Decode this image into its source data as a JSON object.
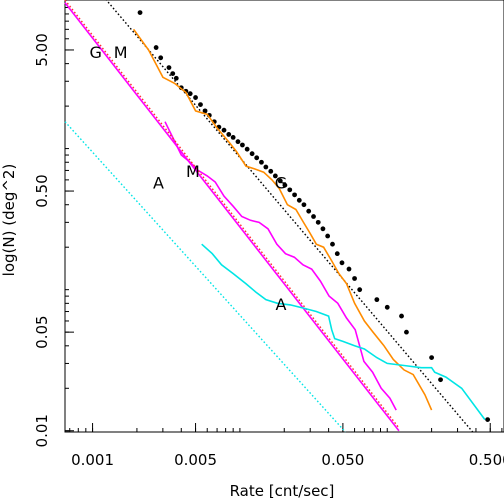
{
  "chart_data": {
    "type": "line",
    "title": "",
    "xlabel": "Rate [cnt/sec]",
    "ylabel": "log(N) (deg^2)",
    "xscale": "log",
    "yscale": "log",
    "xlim": [
      0.00065,
      0.62
    ],
    "ylim": [
      0.0098,
      11.3
    ],
    "x_ticks": [
      {
        "value": 0.001,
        "label": "0.001"
      },
      {
        "value": 0.005,
        "label": "0.005"
      },
      {
        "value": 0.05,
        "label": "0.050"
      },
      {
        "value": 0.5,
        "label": "0.500"
      }
    ],
    "y_ticks": [
      {
        "value": 0.01,
        "label": "0.01"
      },
      {
        "value": 0.05,
        "label": "0.05"
      },
      {
        "value": 0.5,
        "label": "0.50"
      },
      {
        "value": 5,
        "label": "5.00"
      }
    ],
    "colors": {
      "total": "#000000",
      "G": "#ff8c00",
      "M": "#ff00ff",
      "A": "#00e5e5",
      "model_GM": "#ff3030"
    },
    "annotations": [
      {
        "text": "G",
        "x": 0.00105,
        "y": 4.4
      },
      {
        "text": "M",
        "x": 0.00155,
        "y": 4.4
      },
      {
        "text": "A",
        "x": 0.0028,
        "y": 0.52
      },
      {
        "text": "M",
        "x": 0.0048,
        "y": 0.63
      },
      {
        "text": "G",
        "x": 0.019,
        "y": 0.52
      },
      {
        "text": "A",
        "x": 0.019,
        "y": 0.072
      }
    ],
    "series": [
      {
        "key": "total",
        "style": "points",
        "x": [
          0.0021,
          0.0027,
          0.0029,
          0.0033,
          0.0035,
          0.0037,
          0.004,
          0.0043,
          0.0046,
          0.005,
          0.0054,
          0.0058,
          0.0062,
          0.0067,
          0.0072,
          0.0078,
          0.0084,
          0.009,
          0.0097,
          0.0104,
          0.0112,
          0.0121,
          0.013,
          0.014,
          0.015,
          0.0162,
          0.0174,
          0.0188,
          0.0202,
          0.0218,
          0.0235,
          0.0253,
          0.0272,
          0.0293,
          0.0316,
          0.034,
          0.0366,
          0.0394,
          0.0425,
          0.0458,
          0.0493,
          0.055,
          0.06,
          0.065,
          0.085,
          0.1,
          0.125,
          0.135,
          0.2,
          0.23,
          0.48
        ],
        "y": [
          9.2,
          5.2,
          4.4,
          3.75,
          3.4,
          3.15,
          2.7,
          2.55,
          2.45,
          2.3,
          2.05,
          1.85,
          1.72,
          1.55,
          1.42,
          1.35,
          1.26,
          1.2,
          1.12,
          1.06,
          0.99,
          0.92,
          0.86,
          0.8,
          0.74,
          0.69,
          0.64,
          0.59,
          0.55,
          0.51,
          0.47,
          0.43,
          0.4,
          0.36,
          0.33,
          0.3,
          0.27,
          0.24,
          0.21,
          0.18,
          0.155,
          0.14,
          0.12,
          0.1,
          0.085,
          0.075,
          0.065,
          0.05,
          0.033,
          0.023,
          0.012
        ]
      },
      {
        "key": "total_model",
        "style": "dotted",
        "x": [
          0.00118,
          0.38
        ],
        "y": [
          12.0,
          0.0098
        ]
      },
      {
        "key": "G",
        "style": "solid",
        "x": [
          0.0019,
          0.0024,
          0.003,
          0.0036,
          0.0043,
          0.005,
          0.006,
          0.007,
          0.0085,
          0.0095,
          0.011,
          0.0125,
          0.0145,
          0.0165,
          0.0185,
          0.021,
          0.024,
          0.027,
          0.03,
          0.033,
          0.037,
          0.042,
          0.047,
          0.053,
          0.06,
          0.07,
          0.08,
          0.095,
          0.11,
          0.13,
          0.15,
          0.18,
          0.2
        ],
        "y": [
          7.0,
          5.0,
          3.2,
          2.9,
          2.5,
          1.85,
          1.75,
          1.4,
          1.1,
          0.95,
          0.75,
          0.72,
          0.68,
          0.6,
          0.52,
          0.4,
          0.37,
          0.3,
          0.25,
          0.21,
          0.2,
          0.16,
          0.13,
          0.11,
          0.08,
          0.06,
          0.05,
          0.04,
          0.032,
          0.027,
          0.025,
          0.018,
          0.014
        ]
      },
      {
        "key": "M",
        "style": "solid",
        "x": [
          0.0031,
          0.0035,
          0.004,
          0.0046,
          0.0052,
          0.006,
          0.0068,
          0.0078,
          0.009,
          0.0103,
          0.0118,
          0.0135,
          0.0155,
          0.0178,
          0.0204,
          0.0234,
          0.0268,
          0.0307,
          0.0352,
          0.0403,
          0.0462,
          0.0529,
          0.0606,
          0.0694,
          0.0795,
          0.091,
          0.1042,
          0.115
        ],
        "y": [
          1.55,
          1.2,
          0.9,
          0.8,
          0.7,
          0.64,
          0.58,
          0.46,
          0.39,
          0.33,
          0.31,
          0.3,
          0.27,
          0.21,
          0.18,
          0.17,
          0.15,
          0.14,
          0.115,
          0.09,
          0.08,
          0.063,
          0.052,
          0.031,
          0.026,
          0.02,
          0.017,
          0.014
        ]
      },
      {
        "key": "model_GM",
        "style": "dotted",
        "x": [
          0.00065,
          0.12
        ],
        "y": [
          11.3,
          0.0105
        ]
      },
      {
        "key": "model_M",
        "style": "solid",
        "x": [
          0.00065,
          0.12
        ],
        "y": [
          10.8,
          0.01
        ]
      },
      {
        "key": "A",
        "style": "solid",
        "x": [
          0.0055,
          0.0065,
          0.0075,
          0.009,
          0.011,
          0.013,
          0.015,
          0.018,
          0.022,
          0.027,
          0.033,
          0.04,
          0.042,
          0.044,
          0.05,
          0.06,
          0.07,
          0.085,
          0.1,
          0.13,
          0.17,
          0.2,
          0.21,
          0.25,
          0.32,
          0.46
        ],
        "y": [
          0.21,
          0.18,
          0.15,
          0.13,
          0.11,
          0.095,
          0.085,
          0.08,
          0.078,
          0.074,
          0.07,
          0.065,
          0.052,
          0.045,
          0.043,
          0.04,
          0.038,
          0.033,
          0.03,
          0.029,
          0.028,
          0.028,
          0.026,
          0.024,
          0.02,
          0.012
        ]
      },
      {
        "key": "model_A",
        "style": "dotted",
        "x": [
          0.00065,
          0.052
        ],
        "y": [
          1.55,
          0.0098
        ]
      }
    ]
  }
}
